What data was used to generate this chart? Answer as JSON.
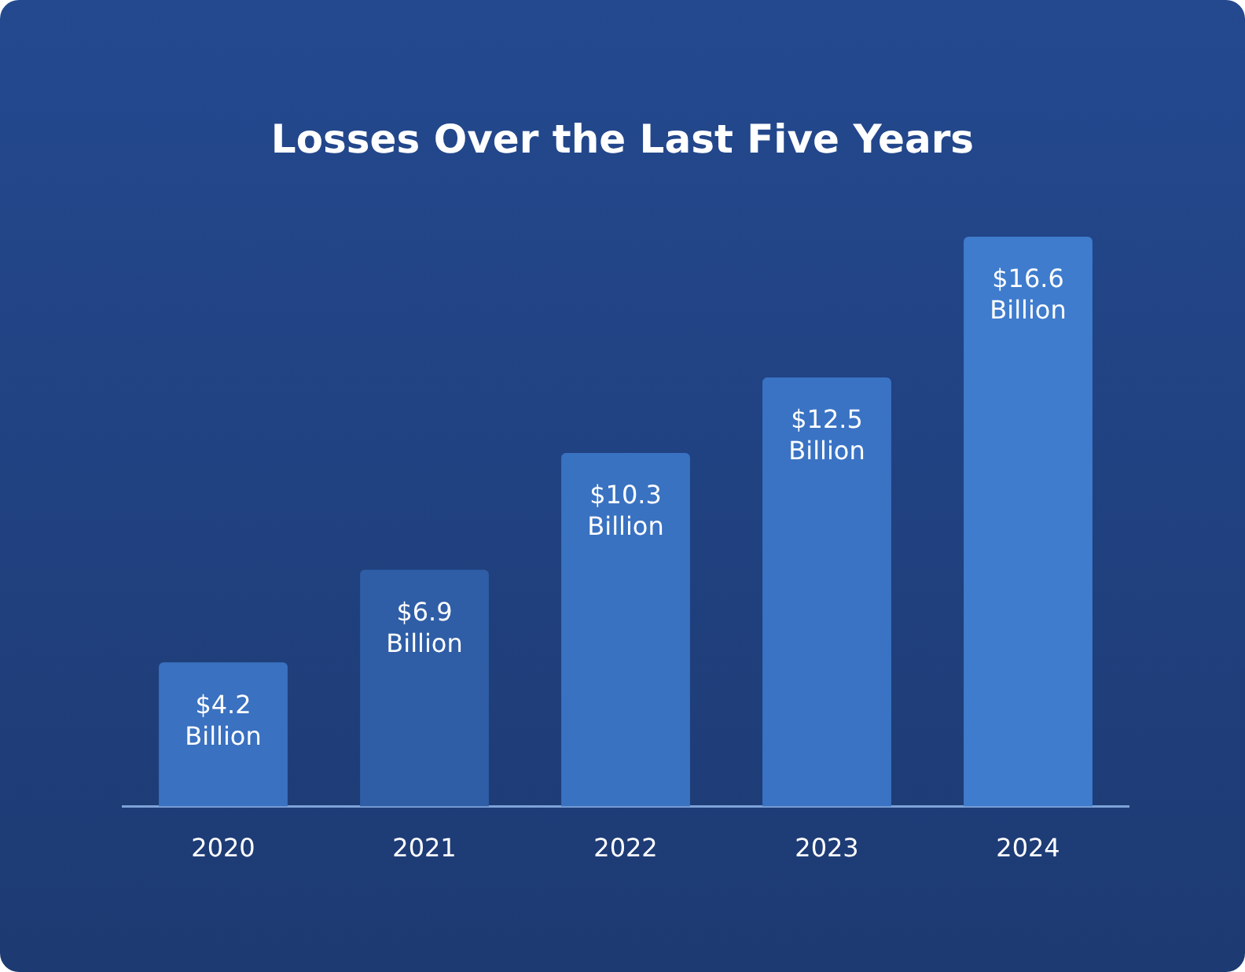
{
  "chart_data": {
    "type": "bar",
    "title": "Losses Over the Last Five Years",
    "categories": [
      "2020",
      "2021",
      "2022",
      "2023",
      "2024"
    ],
    "values": [
      4.2,
      6.9,
      10.3,
      12.5,
      16.6
    ],
    "colors": [
      "#3a71c0",
      "#2f5ea6",
      "#3a72c2",
      "#3a73c4",
      "#3f7ccd"
    ],
    "value_labels": [
      "$4.2 Billion",
      "$6.9 Billion",
      "$10.3 Billion",
      "$12.5 Billion",
      "$16.6 Billion"
    ],
    "grid": false,
    "legend": false
  }
}
